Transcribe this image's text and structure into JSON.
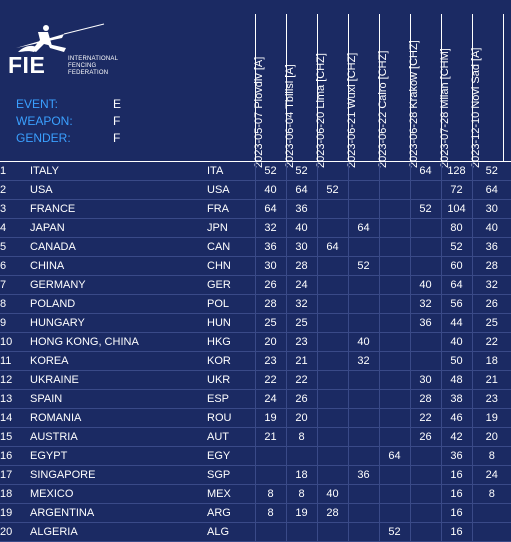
{
  "logo": {
    "name": "FIE",
    "subtitle": [
      "INTERNATIONAL",
      "FENCING",
      "FEDERATION"
    ]
  },
  "meta": {
    "event_label": "EVENT:",
    "event_value": "E",
    "weapon_label": "WEAPON:",
    "weapon_value": "F",
    "gender_label": "GENDER:",
    "gender_value": "F"
  },
  "columns": [
    "2023-05-07 Plovdiv [A]",
    "2023-06-04 Tbilisi [A]",
    "2023-06-20 Lima [CHZ]",
    "2023-06-21 Wuxi [CHZ]",
    "2023-06-22 Cairo [CHZ]",
    "2023-06-28 Krakow [CHZ]",
    "2023-07-28 Milan [CHM]",
    "2023-12-10 Novi Sad [A]"
  ],
  "rows": [
    {
      "rank": "1",
      "name": "ITALY",
      "code": "ITA",
      "pts": [
        "52",
        "52",
        "",
        "",
        "",
        "64",
        "128",
        "52"
      ]
    },
    {
      "rank": "2",
      "name": "USA",
      "code": "USA",
      "pts": [
        "40",
        "64",
        "52",
        "",
        "",
        "",
        "72",
        "64"
      ]
    },
    {
      "rank": "3",
      "name": "FRANCE",
      "code": "FRA",
      "pts": [
        "64",
        "36",
        "",
        "",
        "",
        "52",
        "104",
        "30"
      ]
    },
    {
      "rank": "4",
      "name": "JAPAN",
      "code": "JPN",
      "pts": [
        "32",
        "40",
        "",
        "64",
        "",
        "",
        "80",
        "40"
      ]
    },
    {
      "rank": "5",
      "name": "CANADA",
      "code": "CAN",
      "pts": [
        "36",
        "30",
        "64",
        "",
        "",
        "",
        "52",
        "36"
      ]
    },
    {
      "rank": "6",
      "name": "CHINA",
      "code": "CHN",
      "pts": [
        "30",
        "28",
        "",
        "52",
        "",
        "",
        "60",
        "28"
      ]
    },
    {
      "rank": "7",
      "name": "GERMANY",
      "code": "GER",
      "pts": [
        "26",
        "24",
        "",
        "",
        "",
        "40",
        "64",
        "32"
      ]
    },
    {
      "rank": "8",
      "name": "POLAND",
      "code": "POL",
      "pts": [
        "28",
        "32",
        "",
        "",
        "",
        "32",
        "56",
        "26"
      ]
    },
    {
      "rank": "9",
      "name": "HUNGARY",
      "code": "HUN",
      "pts": [
        "25",
        "25",
        "",
        "",
        "",
        "36",
        "44",
        "25"
      ]
    },
    {
      "rank": "10",
      "name": "HONG KONG, CHINA",
      "code": "HKG",
      "pts": [
        "20",
        "23",
        "",
        "40",
        "",
        "",
        "40",
        "22"
      ]
    },
    {
      "rank": "11",
      "name": "KOREA",
      "code": "KOR",
      "pts": [
        "23",
        "21",
        "",
        "32",
        "",
        "",
        "50",
        "18"
      ]
    },
    {
      "rank": "12",
      "name": "UKRAINE",
      "code": "UKR",
      "pts": [
        "22",
        "22",
        "",
        "",
        "",
        "30",
        "48",
        "21"
      ]
    },
    {
      "rank": "13",
      "name": "SPAIN",
      "code": "ESP",
      "pts": [
        "24",
        "26",
        "",
        "",
        "",
        "28",
        "38",
        "23"
      ]
    },
    {
      "rank": "14",
      "name": "ROMANIA",
      "code": "ROU",
      "pts": [
        "19",
        "20",
        "",
        "",
        "",
        "22",
        "46",
        "19"
      ]
    },
    {
      "rank": "15",
      "name": "AUSTRIA",
      "code": "AUT",
      "pts": [
        "21",
        "8",
        "",
        "",
        "",
        "26",
        "42",
        "20"
      ]
    },
    {
      "rank": "16",
      "name": "EGYPT",
      "code": "EGY",
      "pts": [
        "",
        "",
        "",
        "",
        "64",
        "",
        "36",
        "8"
      ]
    },
    {
      "rank": "17",
      "name": "SINGAPORE",
      "code": "SGP",
      "pts": [
        "",
        "18",
        "",
        "36",
        "",
        "",
        "16",
        "24"
      ]
    },
    {
      "rank": "18",
      "name": "MEXICO",
      "code": "MEX",
      "pts": [
        "8",
        "8",
        "40",
        "",
        "",
        "",
        "16",
        "8"
      ]
    },
    {
      "rank": "19",
      "name": "ARGENTINA",
      "code": "ARG",
      "pts": [
        "8",
        "19",
        "28",
        "",
        "",
        "",
        "16",
        ""
      ]
    },
    {
      "rank": "20",
      "name": "ALGERIA",
      "code": "ALG",
      "pts": [
        "",
        "",
        "",
        "",
        "52",
        "",
        "16",
        ""
      ]
    }
  ]
}
